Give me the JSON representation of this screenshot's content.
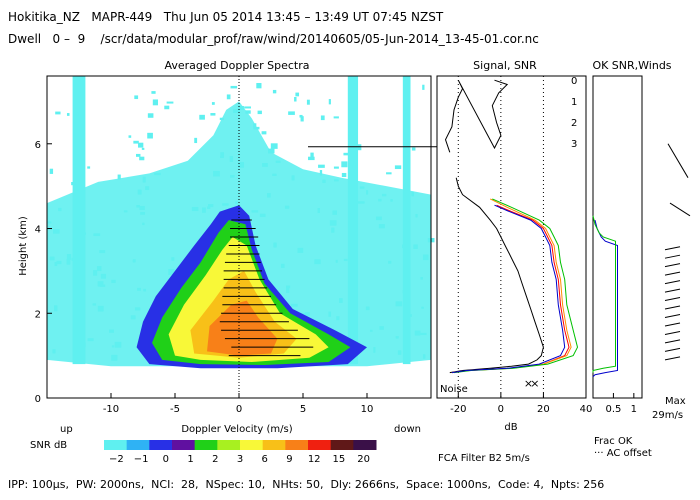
{
  "header": {
    "line1": "Hokitika_NZ   MAPR-449   Thu Jun 05 2014 13:45 – 13:49 UT 07:45 NZST",
    "line2": "Dwell   0 –  9    /scr/data/modular_prof/raw/wind/20140605/05-Jun-2014_13-45-01.cor.nc"
  },
  "footer": {
    "params": "IPP: 100μs,  PW: 2000ns,  NCI:  28,  NSpec: 10,  NHts: 50,  Dly: 2666ns,  Space: 1000ns,  Code: 4,  Npts: 256",
    "filter": "FCA Filter B2   5m/s"
  },
  "colors": {
    "snr_scale": [
      "#5ff0f0",
      "#2fb2f4",
      "#2830e6",
      "#6010a0",
      "#20d018",
      "#a8f020",
      "#f8f838",
      "#f8c018",
      "#f88018",
      "#f02010",
      "#601818",
      "#3a1048",
      "#681880"
    ],
    "channel0": "#ff0000",
    "channel1": "#ff8c00",
    "channel2": "#00c000",
    "channel3": "#0000cc",
    "noise": "#000000"
  },
  "chart_data": [
    {
      "type": "heatmap",
      "title": "Averaged Doppler Spectra",
      "xlabel": "Doppler Velocity (m/s)",
      "ylabel": "Height (km)",
      "xlim": [
        -15,
        15
      ],
      "ylim": [
        0,
        7.6
      ],
      "x_ticks": [
        -10,
        -5,
        0,
        5,
        10
      ],
      "y_ticks": [
        0,
        2,
        4,
        6
      ],
      "x_left_annotation": "up",
      "x_right_annotation": "down",
      "contours": [
        {
          "level": 2,
          "color_index": 2,
          "points": [
            [
              -7,
              0.8
            ],
            [
              -8,
              1.2
            ],
            [
              -7.5,
              1.8
            ],
            [
              -6.5,
              2.4
            ],
            [
              -5,
              3.0
            ],
            [
              -3.5,
              3.6
            ],
            [
              -2.2,
              4.1
            ],
            [
              -1.5,
              4.4
            ],
            [
              0,
              4.55
            ],
            [
              0.8,
              4.3
            ],
            [
              1.3,
              3.6
            ],
            [
              2.3,
              2.8
            ],
            [
              4.2,
              2.1
            ],
            [
              7.5,
              1.6
            ],
            [
              10,
              1.2
            ],
            [
              8.5,
              0.8
            ],
            [
              3,
              0.7
            ],
            [
              -3,
              0.7
            ]
          ]
        },
        {
          "level": 3,
          "color_index": 4,
          "points": [
            [
              -6,
              0.9
            ],
            [
              -6.8,
              1.3
            ],
            [
              -6,
              1.9
            ],
            [
              -4.5,
              2.6
            ],
            [
              -3,
              3.2
            ],
            [
              -1.6,
              3.9
            ],
            [
              -0.8,
              4.2
            ],
            [
              0.5,
              4.1
            ],
            [
              1,
              3.5
            ],
            [
              2,
              2.7
            ],
            [
              4,
              2.0
            ],
            [
              7,
              1.5
            ],
            [
              8.7,
              1.2
            ],
            [
              7,
              0.85
            ],
            [
              2,
              0.78
            ],
            [
              -3,
              0.8
            ]
          ]
        },
        {
          "level": 6,
          "color_index": 6,
          "points": [
            [
              -5,
              1.0
            ],
            [
              -5.5,
              1.5
            ],
            [
              -4.3,
              2.2
            ],
            [
              -2.6,
              2.9
            ],
            [
              -1.3,
              3.5
            ],
            [
              -0.5,
              3.8
            ],
            [
              0.6,
              3.6
            ],
            [
              1.6,
              2.8
            ],
            [
              3.2,
              2.0
            ],
            [
              6,
              1.5
            ],
            [
              7,
              1.2
            ],
            [
              5.5,
              0.95
            ],
            [
              1,
              0.85
            ],
            [
              -3,
              0.9
            ]
          ]
        },
        {
          "level": 9,
          "color_index": 7,
          "points": [
            [
              -3.5,
              1.05
            ],
            [
              -3.8,
              1.6
            ],
            [
              -2,
              2.3
            ],
            [
              -0.8,
              2.8
            ],
            [
              0.4,
              3.0
            ],
            [
              1.3,
              2.5
            ],
            [
              2.8,
              1.8
            ],
            [
              4.5,
              1.4
            ],
            [
              3.5,
              1.05
            ],
            [
              0,
              0.95
            ]
          ]
        }
      ],
      "strands": [
        {
          "x_range": [
            -13,
            -12
          ],
          "y_range": [
            0.8,
            7.6
          ]
        },
        {
          "x_range": [
            8.5,
            9.3
          ],
          "y_range": [
            0.8,
            7.6
          ]
        },
        {
          "x_range": [
            12.8,
            13.4
          ],
          "y_range": [
            0.8,
            7.6
          ]
        }
      ],
      "vertical_reference_x": 0,
      "horizontal_marker_y": 5.93,
      "error_bars": [
        {
          "y": 1.0,
          "x": 2.0,
          "half_width": 2.8
        },
        {
          "y": 1.2,
          "x": 2.6,
          "half_width": 3.2
        },
        {
          "y": 1.4,
          "x": 2.2,
          "half_width": 3.3
        },
        {
          "y": 1.6,
          "x": 1.6,
          "half_width": 3.0
        },
        {
          "y": 1.8,
          "x": 1.2,
          "half_width": 2.7
        },
        {
          "y": 2.0,
          "x": 1.0,
          "half_width": 2.4
        },
        {
          "y": 2.2,
          "x": 0.8,
          "half_width": 2.1
        },
        {
          "y": 2.4,
          "x": 0.6,
          "half_width": 1.9
        },
        {
          "y": 2.6,
          "x": 0.5,
          "half_width": 1.7
        },
        {
          "y": 2.8,
          "x": 0.4,
          "half_width": 1.6
        },
        {
          "y": 3.0,
          "x": 0.3,
          "half_width": 1.5
        },
        {
          "y": 3.2,
          "x": 0.3,
          "half_width": 1.4
        },
        {
          "y": 3.4,
          "x": 0.3,
          "half_width": 1.3
        },
        {
          "y": 3.6,
          "x": 0.4,
          "half_width": 1.2
        },
        {
          "y": 3.8,
          "x": 0.4,
          "half_width": 1.1
        },
        {
          "y": 4.0,
          "x": 0.3,
          "half_width": 1.0
        },
        {
          "y": 4.2,
          "x": 0.2,
          "half_width": 0.8
        }
      ]
    },
    {
      "type": "line",
      "title": "Signal, SNR",
      "xlabel": "dB",
      "xlim": [
        -30,
        40
      ],
      "ylim": [
        0,
        7.6
      ],
      "x_ticks": [
        -20,
        0,
        20,
        40
      ],
      "dotted_guides_x": [
        -20,
        0,
        20
      ],
      "annotation": "Noise",
      "legend": [
        "0",
        "1",
        "2",
        "3"
      ],
      "series": [
        {
          "name": "Noise",
          "points": [
            [
              -24,
              0.6
            ],
            [
              -18,
              0.65
            ],
            [
              -5,
              0.7
            ],
            [
              5,
              0.75
            ],
            [
              13,
              0.8
            ],
            [
              17,
              0.9
            ],
            [
              19,
              1.0
            ],
            [
              20,
              1.2
            ],
            [
              18,
              1.5
            ],
            [
              16,
              1.8
            ],
            [
              14,
              2.1
            ],
            [
              12,
              2.4
            ],
            [
              10,
              2.7
            ],
            [
              8,
              3.0
            ],
            [
              6,
              3.2
            ],
            [
              4,
              3.4
            ],
            [
              2,
              3.6
            ],
            [
              0,
              3.8
            ],
            [
              -2,
              4.0
            ],
            [
              -5,
              4.2
            ],
            [
              -10,
              4.5
            ],
            [
              -18,
              4.8
            ],
            [
              -20,
              5.0
            ],
            [
              -21,
              5.2
            ]
          ]
        },
        {
          "name": "0",
          "points": [
            [
              -23,
              0.6
            ],
            [
              -15,
              0.65
            ],
            [
              5,
              0.7
            ],
            [
              20,
              0.8
            ],
            [
              30,
              1.0
            ],
            [
              32,
              1.2
            ],
            [
              30,
              1.6
            ],
            [
              28,
              2.2
            ],
            [
              27,
              2.8
            ],
            [
              25,
              3.2
            ],
            [
              24,
              3.6
            ],
            [
              22,
              3.8
            ],
            [
              20,
              4.0
            ],
            [
              15,
              4.2
            ],
            [
              5,
              4.4
            ],
            [
              -2,
              4.55
            ]
          ]
        },
        {
          "name": "1",
          "points": [
            [
              -23,
              0.6
            ],
            [
              -15,
              0.65
            ],
            [
              5,
              0.7
            ],
            [
              20,
              0.8
            ],
            [
              31,
              1.0
            ],
            [
              33,
              1.2
            ],
            [
              31,
              1.6
            ],
            [
              29,
              2.2
            ],
            [
              28,
              2.8
            ],
            [
              26,
              3.2
            ],
            [
              25,
              3.6
            ],
            [
              23,
              3.8
            ],
            [
              21,
              4.0
            ],
            [
              16,
              4.2
            ],
            [
              3,
              4.5
            ],
            [
              -5,
              4.7
            ]
          ]
        },
        {
          "name": "2",
          "points": [
            [
              -22,
              0.6
            ],
            [
              -14,
              0.65
            ],
            [
              6,
              0.7
            ],
            [
              22,
              0.8
            ],
            [
              34,
              1.0
            ],
            [
              36,
              1.2
            ],
            [
              34,
              1.6
            ],
            [
              31,
              2.2
            ],
            [
              30,
              2.8
            ],
            [
              28,
              3.2
            ],
            [
              27,
              3.6
            ],
            [
              25,
              3.8
            ],
            [
              23,
              4.0
            ],
            [
              18,
              4.2
            ],
            [
              5,
              4.5
            ],
            [
              -4,
              4.7
            ]
          ]
        },
        {
          "name": "3",
          "points": [
            [
              -23,
              0.6
            ],
            [
              -16,
              0.65
            ],
            [
              3,
              0.7
            ],
            [
              18,
              0.8
            ],
            [
              28,
              1.0
            ],
            [
              30,
              1.2
            ],
            [
              29,
              1.6
            ],
            [
              27,
              2.2
            ],
            [
              26,
              2.8
            ],
            [
              24,
              3.2
            ],
            [
              23,
              3.6
            ],
            [
              21,
              3.8
            ],
            [
              19,
              4.0
            ],
            [
              14,
              4.2
            ],
            [
              4,
              4.4
            ],
            [
              -3,
              4.55
            ]
          ]
        },
        {
          "name": "upper",
          "points": [
            [
              -24,
              5.8
            ],
            [
              -26,
              6.1
            ],
            [
              -23,
              6.4
            ],
            [
              -22,
              6.8
            ],
            [
              -20,
              7.1
            ],
            [
              -18,
              7.3
            ],
            [
              -20,
              7.5
            ],
            [
              -3,
              5.9
            ],
            [
              0,
              6.2
            ],
            [
              -2,
              6.5
            ],
            [
              -4,
              6.9
            ],
            [
              -1,
              7.2
            ],
            [
              3,
              7.4
            ],
            [
              -3,
              7.5
            ]
          ]
        }
      ],
      "markers": [
        {
          "x": 13,
          "y": 0.35,
          "label": "×"
        },
        {
          "x": 16,
          "y": 0.35,
          "label": "×"
        }
      ]
    },
    {
      "type": "line",
      "title": "OK SNR,Winds",
      "xlim": [
        0,
        1.2
      ],
      "ylim": [
        0,
        7.6
      ],
      "x_ticks": [
        0.5,
        1
      ],
      "x_tick_labels": [
        "0.5",
        "1"
      ],
      "legend": [
        "Frac OK",
        "··· AC offset"
      ],
      "series": [
        {
          "name": "Frac OK",
          "points": [
            [
              0,
              0.5
            ],
            [
              0.05,
              0.55
            ],
            [
              0.3,
              0.6
            ],
            [
              0.6,
              0.65
            ],
            [
              0.6,
              3.6
            ],
            [
              0.3,
              3.7
            ],
            [
              0.2,
              3.8
            ],
            [
              0.1,
              4.0
            ],
            [
              0.05,
              4.2
            ]
          ]
        }
      ],
      "wind_max_label": "Max",
      "wind_max_value": "29m/s"
    }
  ],
  "snr_colorbar": {
    "label": "SNR dB",
    "ticks": [
      "−2",
      "−1",
      "0",
      "1",
      "2",
      "3",
      "6",
      "9",
      "12",
      "15",
      "20"
    ]
  }
}
